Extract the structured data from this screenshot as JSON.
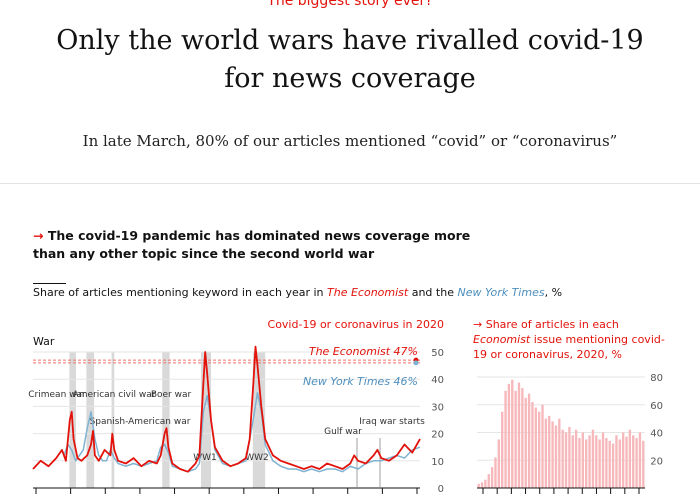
{
  "header": {
    "kicker": "The biggest story ever?",
    "headline_line1": "Only the world wars have rivalled covid-19",
    "headline_line2": "for news coverage",
    "subhead": "In late March, 80% of our articles mentioned “covid” or “coronavirus”"
  },
  "chart_heading": {
    "arrow": "→",
    "text": "The covid-19 pandemic has dominated news coverage more than any other topic since the second world war"
  },
  "chart_desc": {
    "prefix": "Share of articles mentioning keyword in each year in ",
    "economist": "The Economist",
    "middle": " and the ",
    "nyt": "New York Times",
    "suffix": ", %"
  },
  "colors": {
    "economist": "#e3120b",
    "nyt": "#7fb3d2",
    "nyt_text": "#4d8fbd",
    "war_band": "#d9d9d9",
    "bar": "#f7b8bc",
    "grid": "#e6e6e6",
    "ref_line": "#f2726b"
  },
  "chart_data": [
    {
      "type": "line",
      "ylabel": "War",
      "ylim": [
        0,
        50
      ],
      "y_ticks": [
        0,
        10,
        20,
        30,
        40,
        50
      ],
      "x_ticks_count": 12,
      "covid_label": "Covid-19 or coronavirus in 2020",
      "reference_lines": [
        {
          "name": "The Economist 47%",
          "value": 47
        },
        {
          "name": "New York Times 46%",
          "value": 46
        }
      ],
      "war_bands": [
        {
          "label": "Crimean war",
          "start": 0.094,
          "end": 0.111
        },
        {
          "label": "American civil war",
          "start": 0.138,
          "end": 0.158
        },
        {
          "label": "Spanish-American war",
          "start": 0.203,
          "end": 0.21
        },
        {
          "label": "Boer war",
          "start": 0.334,
          "end": 0.353
        },
        {
          "label": "WW1",
          "start": 0.434,
          "end": 0.46
        },
        {
          "label": "WW2",
          "start": 0.568,
          "end": 0.6
        }
      ],
      "annotations": [
        "Crimean war",
        "American civil war",
        "Spanish-American war",
        "Boer war",
        "WW1",
        "WW2",
        "Gulf war",
        "Iraq war starts"
      ],
      "series": [
        {
          "name": "The Economist",
          "x": [
            0.0,
            0.02,
            0.04,
            0.06,
            0.075,
            0.085,
            0.095,
            0.1,
            0.105,
            0.115,
            0.125,
            0.14,
            0.15,
            0.155,
            0.16,
            0.17,
            0.185,
            0.2,
            0.205,
            0.21,
            0.22,
            0.24,
            0.26,
            0.28,
            0.3,
            0.32,
            0.33,
            0.34,
            0.345,
            0.35,
            0.36,
            0.38,
            0.4,
            0.42,
            0.43,
            0.44,
            0.445,
            0.45,
            0.46,
            0.47,
            0.49,
            0.51,
            0.53,
            0.55,
            0.56,
            0.57,
            0.575,
            0.58,
            0.59,
            0.6,
            0.62,
            0.64,
            0.66,
            0.68,
            0.7,
            0.72,
            0.74,
            0.76,
            0.78,
            0.8,
            0.82,
            0.83,
            0.84,
            0.86,
            0.88,
            0.89,
            0.9,
            0.92,
            0.94,
            0.96,
            0.98,
            1.0
          ],
          "y": [
            7,
            10,
            8,
            11,
            14,
            10,
            25,
            28,
            18,
            11,
            10,
            12,
            16,
            21,
            12,
            10,
            14,
            12,
            20,
            14,
            10,
            9,
            11,
            8,
            10,
            9,
            12,
            20,
            22,
            15,
            9,
            7,
            6,
            9,
            12,
            38,
            50,
            42,
            25,
            15,
            10,
            8,
            9,
            11,
            18,
            40,
            52,
            45,
            30,
            18,
            12,
            10,
            9,
            8,
            7,
            8,
            7,
            9,
            8,
            7,
            9,
            12,
            10,
            9,
            12,
            14,
            11,
            10,
            12,
            16,
            13,
            18
          ]
        },
        {
          "name": "New York Times",
          "x": [
            0.08,
            0.09,
            0.1,
            0.11,
            0.13,
            0.14,
            0.15,
            0.16,
            0.17,
            0.18,
            0.19,
            0.2,
            0.21,
            0.22,
            0.24,
            0.26,
            0.28,
            0.3,
            0.32,
            0.33,
            0.34,
            0.35,
            0.36,
            0.38,
            0.4,
            0.42,
            0.43,
            0.44,
            0.45,
            0.46,
            0.47,
            0.49,
            0.51,
            0.53,
            0.55,
            0.57,
            0.58,
            0.59,
            0.6,
            0.62,
            0.64,
            0.66,
            0.68,
            0.7,
            0.72,
            0.74,
            0.76,
            0.78,
            0.8,
            0.82,
            0.84,
            0.86,
            0.88,
            0.9,
            0.92,
            0.94,
            0.96,
            0.98,
            1.0
          ],
          "y": [
            12,
            16,
            14,
            10,
            14,
            22,
            28,
            18,
            12,
            10,
            10,
            14,
            11,
            9,
            8,
            9,
            8,
            9,
            10,
            15,
            16,
            13,
            8,
            7,
            6,
            7,
            9,
            28,
            34,
            25,
            14,
            9,
            8,
            9,
            10,
            26,
            35,
            28,
            16,
            10,
            8,
            7,
            7,
            6,
            7,
            6,
            7,
            7,
            6,
            8,
            7,
            9,
            10,
            10,
            11,
            12,
            11,
            14,
            15
          ]
        }
      ]
    },
    {
      "type": "bar",
      "title_prefix": "Share of articles in each ",
      "title_ital": "Economist",
      "title_suffix": " issue mentioning covid-19 or coronavirus, 2020, %",
      "ylim": [
        0,
        80
      ],
      "y_ticks": [
        20,
        40,
        60,
        80
      ],
      "x_ticks_count": 12,
      "values": [
        3,
        4,
        6,
        10,
        15,
        22,
        35,
        55,
        70,
        75,
        78,
        70,
        76,
        72,
        65,
        68,
        62,
        58,
        55,
        60,
        50,
        52,
        48,
        45,
        50,
        42,
        40,
        44,
        38,
        42,
        36,
        40,
        35,
        38,
        42,
        38,
        35,
        40,
        36,
        34,
        32,
        38,
        35,
        40,
        37,
        42,
        38,
        36,
        40,
        34
      ]
    }
  ]
}
